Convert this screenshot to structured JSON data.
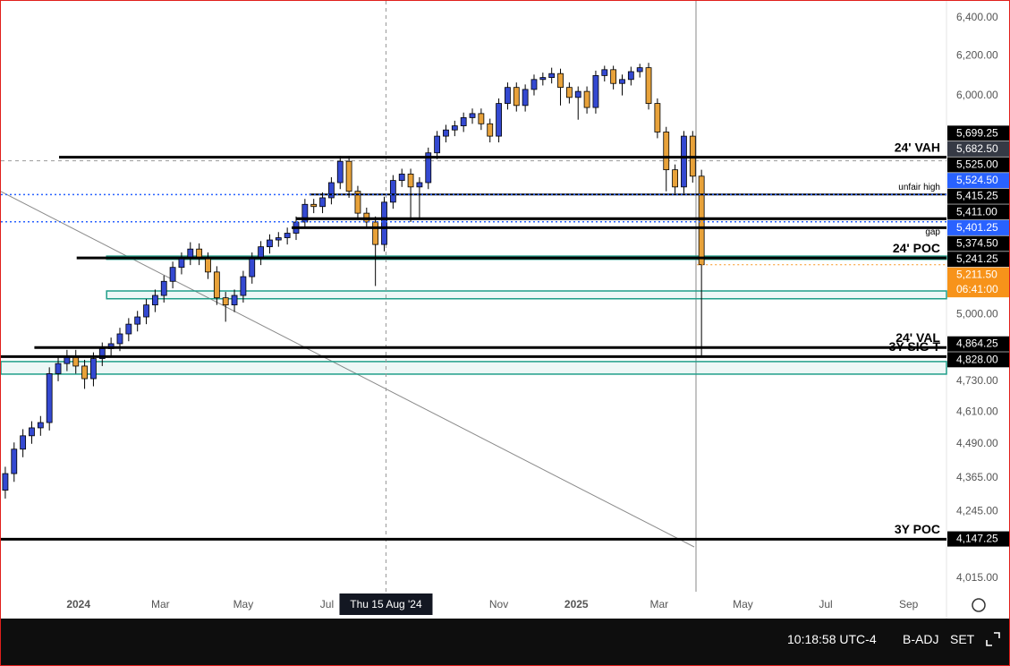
{
  "chart_data": {
    "type": "candlestick",
    "log_scale": true,
    "grid": false,
    "up_color": "#3449d1",
    "down_color": "#e8a23a",
    "ylim": [
      3970,
      6491
    ],
    "xlim": [
      -0.5,
      106.8
    ],
    "yticks": [
      {
        "value": 6400,
        "label": "6,400.00"
      },
      {
        "value": 6200,
        "label": "6,200.00"
      },
      {
        "value": 6000,
        "label": "6,000.00"
      },
      {
        "value": 5000,
        "label": "5,000.00"
      },
      {
        "value": 4730,
        "label": "4,730.00"
      },
      {
        "value": 4610,
        "label": "4,610.00"
      },
      {
        "value": 4490,
        "label": "4,490.00"
      },
      {
        "value": 4365,
        "label": "4,365.00"
      },
      {
        "value": 4245,
        "label": "4,245.00"
      },
      {
        "value": 4015,
        "label": "4,015.00"
      }
    ],
    "xticks": [
      {
        "value": 8.3,
        "label": "2024"
      },
      {
        "value": 17.6,
        "label": "Mar"
      },
      {
        "value": 27,
        "label": "May"
      },
      {
        "value": 36.5,
        "label": "Jul"
      },
      {
        "value": 56,
        "label": "Nov"
      },
      {
        "value": 64.8,
        "label": "2025"
      },
      {
        "value": 74.2,
        "label": "Mar"
      },
      {
        "value": 83.7,
        "label": "May"
      },
      {
        "value": 93.1,
        "label": "Jul"
      },
      {
        "value": 102.5,
        "label": "Sep"
      }
    ],
    "open": [
      4320,
      4380,
      4470,
      4520,
      4550,
      4570,
      4760,
      4800,
      4830,
      4790,
      4740,
      4820,
      4860,
      4880,
      4920,
      4960,
      4990,
      5040,
      5080,
      5140,
      5200,
      5240,
      5280,
      5240,
      5180,
      5070,
      5040,
      5080,
      5160,
      5240,
      5290,
      5320,
      5330,
      5350,
      5400,
      5480,
      5470,
      5510,
      5580,
      5680,
      5540,
      5440,
      5400,
      5300,
      5490,
      5590,
      5620,
      5560,
      5580,
      5720,
      5800,
      5830,
      5850,
      5890,
      5910,
      5860,
      5800,
      5960,
      6040,
      5950,
      6030,
      6080,
      6090,
      6110,
      6040,
      5990,
      6020,
      5940,
      6100,
      6130,
      6060,
      6080,
      6120,
      6140,
      5960,
      5820,
      5640,
      5560,
      5800,
      5610
    ],
    "high": [
      4405,
      4495,
      4545,
      4575,
      4595,
      4785,
      4825,
      4855,
      4855,
      4815,
      4845,
      4885,
      4905,
      4945,
      4985,
      5015,
      5065,
      5105,
      5165,
      5225,
      5265,
      5310,
      5305,
      5265,
      5205,
      5095,
      5105,
      5185,
      5265,
      5315,
      5345,
      5355,
      5375,
      5425,
      5505,
      5505,
      5535,
      5605,
      5705,
      5705,
      5565,
      5465,
      5425,
      5515,
      5615,
      5645,
      5645,
      5605,
      5745,
      5825,
      5855,
      5875,
      5915,
      5935,
      5935,
      5885,
      5985,
      6065,
      6065,
      6055,
      6105,
      6115,
      6140,
      6135,
      6065,
      6045,
      6045,
      6125,
      6150,
      6150,
      6105,
      6145,
      6160,
      6165,
      5985,
      5845,
      5665,
      5825,
      5825,
      5640
    ],
    "low": [
      4290,
      4350,
      4440,
      4490,
      4520,
      4540,
      4730,
      4770,
      4760,
      4700,
      4710,
      4790,
      4830,
      4850,
      4890,
      4930,
      4960,
      5010,
      5050,
      5110,
      5170,
      5210,
      5210,
      5150,
      5040,
      4970,
      5010,
      5050,
      5130,
      5210,
      5260,
      5290,
      5300,
      5320,
      5370,
      5440,
      5440,
      5480,
      5550,
      5510,
      5410,
      5370,
      5120,
      5270,
      5460,
      5560,
      5400,
      5420,
      5550,
      5690,
      5770,
      5800,
      5820,
      5860,
      5830,
      5770,
      5770,
      5930,
      5920,
      5920,
      6000,
      6050,
      6060,
      5950,
      5960,
      5880,
      5910,
      5910,
      6070,
      6030,
      6000,
      6050,
      6090,
      5930,
      5790,
      5540,
      5530,
      5530,
      5580,
      4830
    ],
    "close": [
      4380,
      4470,
      4520,
      4550,
      4570,
      4760,
      4800,
      4830,
      4790,
      4740,
      4820,
      4860,
      4880,
      4920,
      4960,
      4990,
      5040,
      5080,
      5140,
      5200,
      5240,
      5280,
      5240,
      5180,
      5070,
      5040,
      5080,
      5160,
      5240,
      5290,
      5320,
      5330,
      5350,
      5400,
      5480,
      5470,
      5510,
      5580,
      5680,
      5540,
      5440,
      5400,
      5300,
      5490,
      5590,
      5620,
      5560,
      5580,
      5720,
      5800,
      5830,
      5850,
      5890,
      5910,
      5860,
      5800,
      5960,
      6040,
      5950,
      6030,
      6080,
      6090,
      6110,
      6040,
      5990,
      6020,
      5940,
      6100,
      6130,
      6060,
      6080,
      6120,
      6140,
      5960,
      5820,
      5640,
      5560,
      5800,
      5610,
      5211.5
    ],
    "zones": [
      {
        "top": 5249,
        "bottom": 5235,
        "from": 11.5,
        "color": "#1f9e89"
      },
      {
        "top": 5099,
        "bottom": 5066,
        "from": 11.5,
        "color": "#1f9e89"
      },
      {
        "top": 4808,
        "bottom": 4758,
        "from": -0.5,
        "color": "#1f9e89"
      }
    ],
    "levels": [
      {
        "value": 5699.25,
        "label": "5,699.25",
        "text": "24' VAH",
        "from": 6.1,
        "color": "#000000",
        "width": 3,
        "dash": "solid",
        "label_color": "#000000"
      },
      {
        "value": 5525.0,
        "label": "5,525.00",
        "text": "unfair high",
        "small": true,
        "from": 34.5,
        "color": "#000000",
        "width": 2,
        "dash": "solid",
        "label_color": "#000000"
      },
      {
        "value": 5524.5,
        "label": "5,524.50",
        "from": -0.5,
        "color": "#2962ff",
        "width": 1.5,
        "dash": "dotted",
        "label_color": "#2962ff"
      },
      {
        "value": 5415.25,
        "label": "5,415.25",
        "from": 33,
        "color": "#000000",
        "width": 3,
        "dash": "solid",
        "label_color": "#000000"
      },
      {
        "value": 5411.0,
        "label": "5,411.00",
        "from": 33,
        "color": "#000000",
        "width": 1,
        "dash": "solid",
        "label_color": "#000000"
      },
      {
        "value": 5401.25,
        "label": "5,401.25",
        "from": -0.5,
        "color": "#2962ff",
        "width": 1.5,
        "dash": "dotted",
        "label_color": "#2962ff"
      },
      {
        "value": 5374.5,
        "label": "5,374.50",
        "text": "gap",
        "small": true,
        "below": true,
        "from": 32.5,
        "color": "#000000",
        "width": 3,
        "dash": "solid",
        "label_color": "#000000"
      },
      {
        "value": 5241.25,
        "label": "5,241.25",
        "text": "24' POC",
        "from": 8.1,
        "color": "#000000",
        "width": 3,
        "dash": "solid",
        "label_color": "#000000"
      },
      {
        "value": 5211.5,
        "label": "5,211.50",
        "countdown": "06:41:00",
        "from": 78.5,
        "color": "#f7931a",
        "width": 1,
        "dash": "dotted",
        "label_color": "#f7931a"
      },
      {
        "value": 4864.25,
        "label": "4,864.25",
        "text": "24' VAL",
        "from": 3.3,
        "color": "#000000",
        "width": 3,
        "dash": "solid",
        "label_color": "#000000"
      },
      {
        "value": 4828.0,
        "label": "4,828.00",
        "text": "3Y SIG T",
        "from": -0.5,
        "color": "#000000",
        "width": 3,
        "dash": "solid",
        "label_color": "#000000"
      },
      {
        "value": 4147.25,
        "label": "4,147.25",
        "text": "3Y POC",
        "from": -0.5,
        "color": "#000000",
        "width": 3,
        "dash": "solid",
        "label_color": "#000000"
      }
    ],
    "crosshair": {
      "x": 43.2,
      "x_label": "Thu 15 Aug '24",
      "y": 5682.5,
      "y_label": "5,682.50"
    }
  },
  "toolbar": {
    "time": "10:18:58 UTC-4",
    "adjust": "B-ADJ",
    "session": "SET"
  }
}
